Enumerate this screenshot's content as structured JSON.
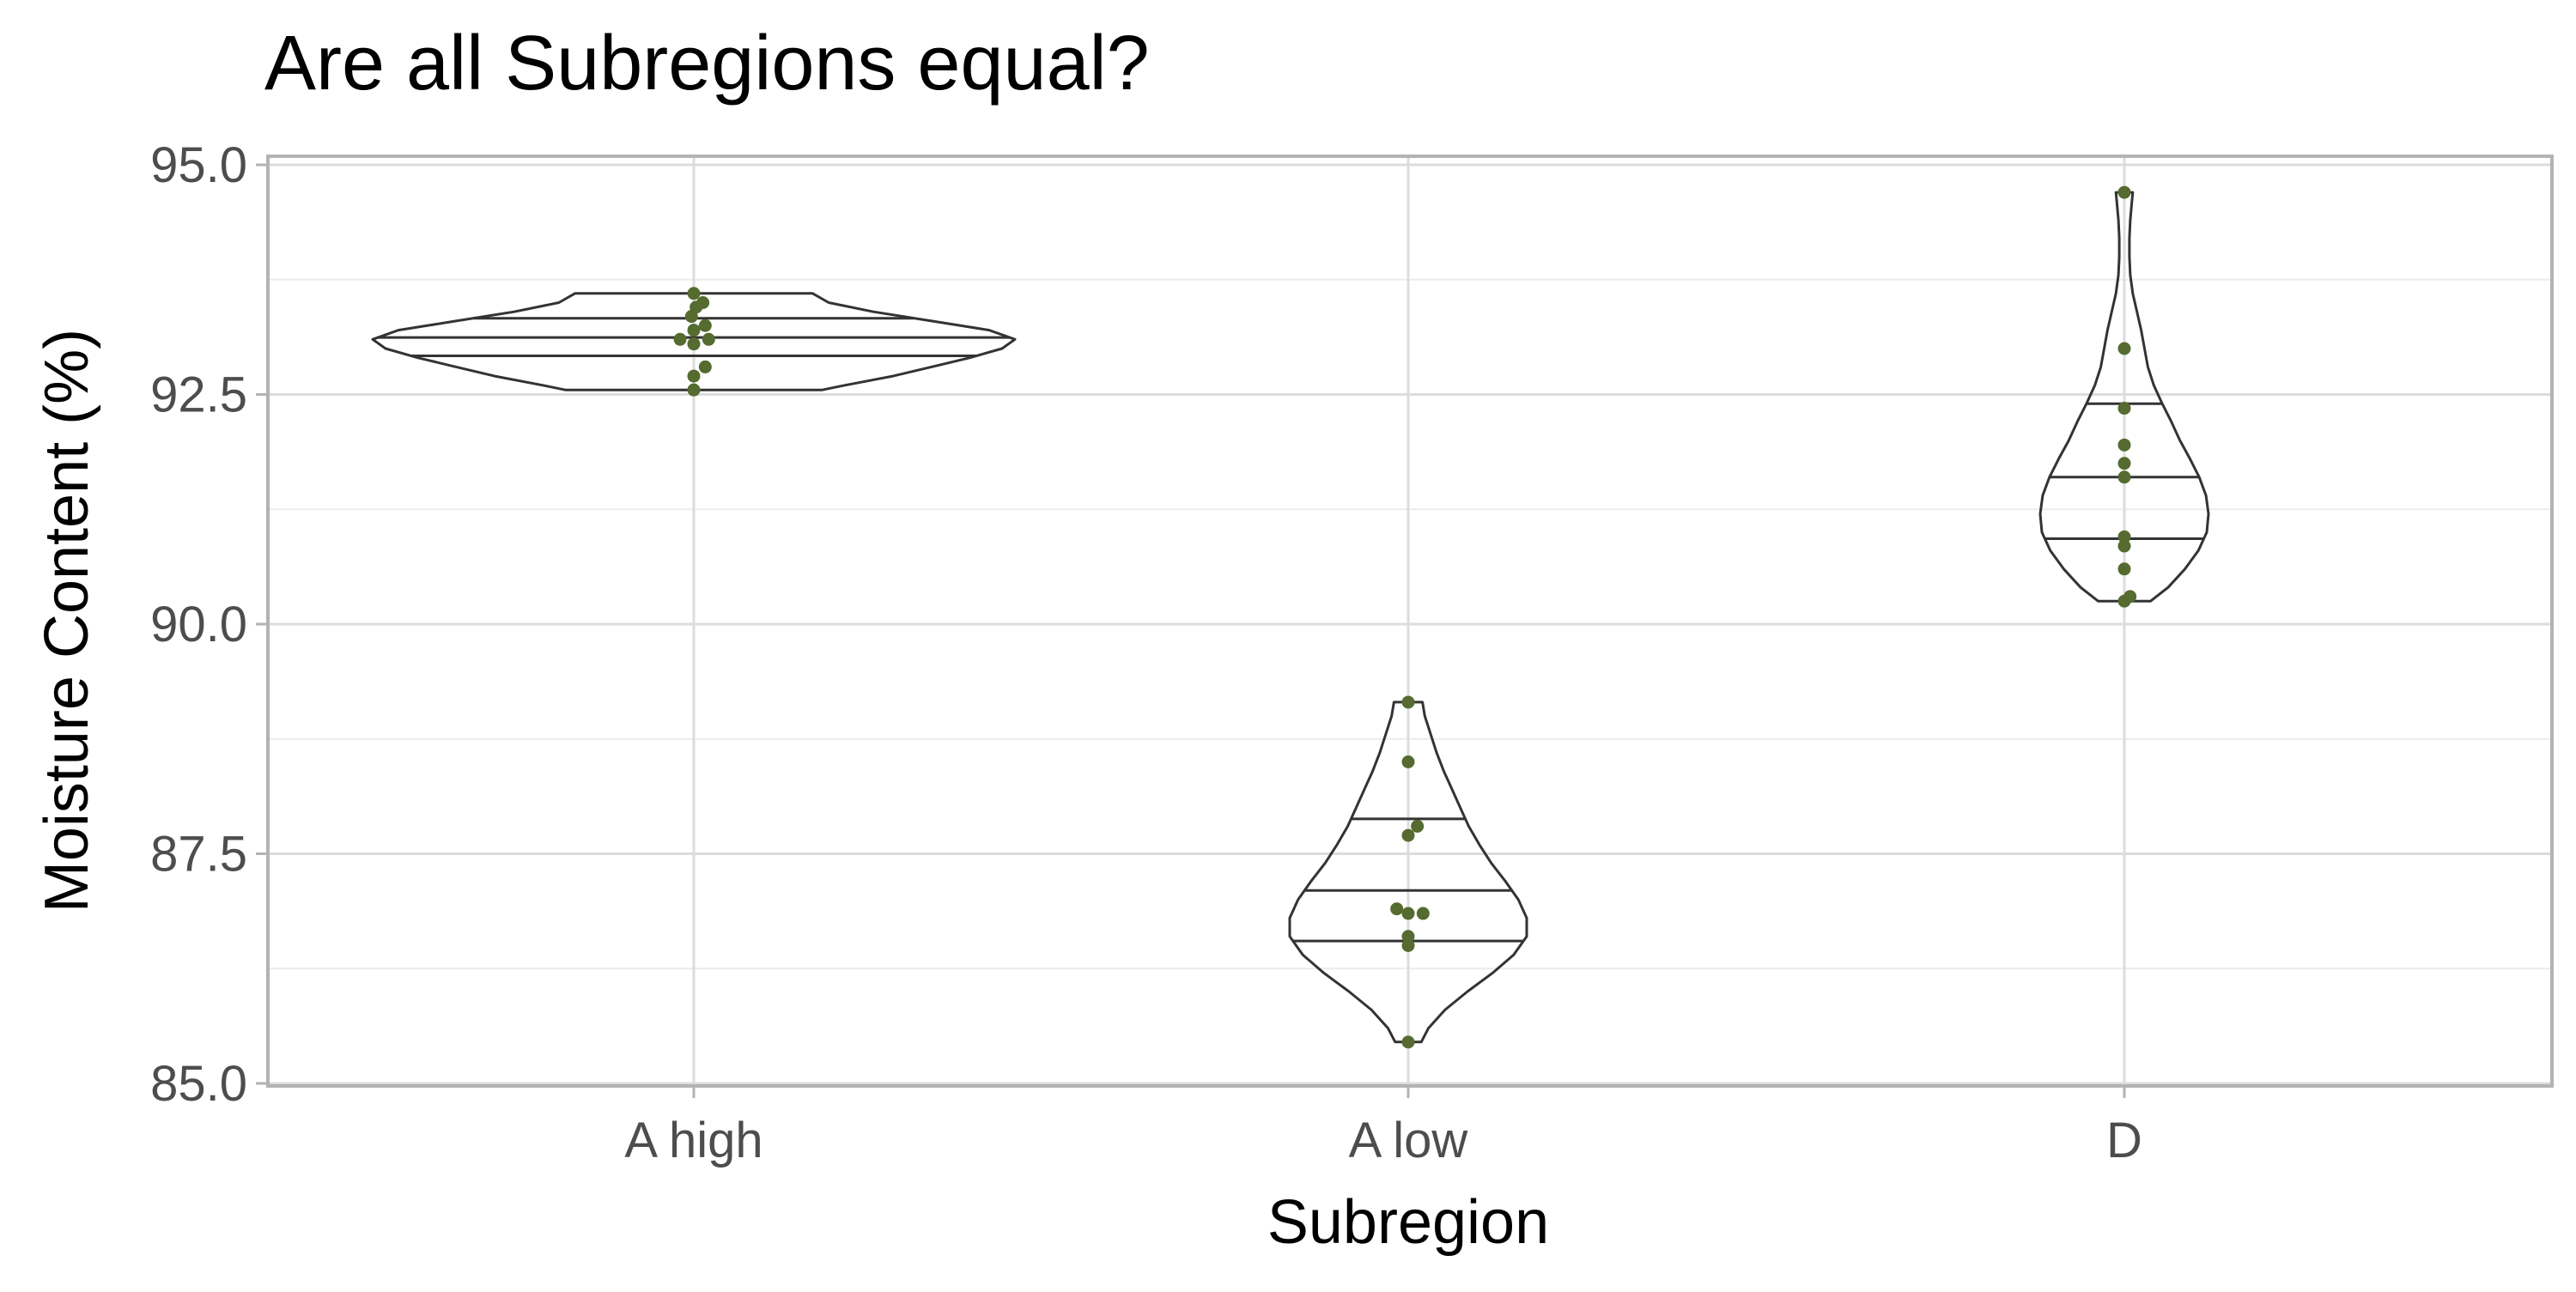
{
  "chart_data": {
    "type": "violin",
    "title": "Are all Subregions equal?",
    "xlabel": "Subregion",
    "ylabel": "Moisture Content (%)",
    "categories": [
      "A high",
      "A low",
      "D"
    ],
    "ylim": [
      85.0,
      95.0
    ],
    "yticks": [
      85.0,
      87.5,
      90.0,
      92.5,
      95.0
    ],
    "ytick_labels": [
      "85.0",
      "87.5",
      "90.0",
      "92.5",
      "95.0"
    ],
    "grid": true,
    "colors": {
      "points": "#556b2f",
      "violin_stroke": "#333333",
      "grid": "#dcdcdc",
      "panel_border": "#b3b3b3"
    },
    "groups": [
      {
        "category": "A high",
        "points": [
          {
            "y": 93.6,
            "dx": 0.0
          },
          {
            "y": 93.5,
            "dx": 0.08
          },
          {
            "y": 93.45,
            "dx": 0.02
          },
          {
            "y": 93.35,
            "dx": -0.02
          },
          {
            "y": 93.25,
            "dx": 0.1
          },
          {
            "y": 93.2,
            "dx": 0.0
          },
          {
            "y": 93.1,
            "dx": -0.12
          },
          {
            "y": 93.1,
            "dx": 0.13
          },
          {
            "y": 93.05,
            "dx": 0.0
          },
          {
            "y": 92.8,
            "dx": 0.1
          },
          {
            "y": 92.7,
            "dx": 0.0
          },
          {
            "y": 92.55,
            "dx": 0.0
          }
        ],
        "quantiles": [
          92.92,
          93.12,
          93.33
        ],
        "density": [
          [
            92.55,
            0.4
          ],
          [
            92.6,
            0.47
          ],
          [
            92.7,
            0.62
          ],
          [
            92.8,
            0.74
          ],
          [
            92.9,
            0.86
          ],
          [
            93.0,
            0.96
          ],
          [
            93.1,
            1.0
          ],
          [
            93.2,
            0.92
          ],
          [
            93.3,
            0.74
          ],
          [
            93.4,
            0.56
          ],
          [
            93.5,
            0.42
          ],
          [
            93.6,
            0.37
          ]
        ]
      },
      {
        "category": "A low",
        "points": [
          {
            "y": 89.15,
            "dx": 0.0
          },
          {
            "y": 88.5,
            "dx": 0.0
          },
          {
            "y": 87.8,
            "dx": 0.08
          },
          {
            "y": 87.7,
            "dx": 0.0
          },
          {
            "y": 86.9,
            "dx": -0.1
          },
          {
            "y": 86.85,
            "dx": 0.0
          },
          {
            "y": 86.85,
            "dx": 0.13
          },
          {
            "y": 86.6,
            "dx": 0.0
          },
          {
            "y": 86.5,
            "dx": 0.0
          },
          {
            "y": 85.45,
            "dx": 0.0
          }
        ],
        "quantiles": [
          86.55,
          87.1,
          87.88
        ],
        "density": [
          [
            85.45,
            0.11
          ],
          [
            85.6,
            0.17
          ],
          [
            85.8,
            0.31
          ],
          [
            86.0,
            0.5
          ],
          [
            86.2,
            0.71
          ],
          [
            86.4,
            0.89
          ],
          [
            86.6,
            1.0
          ],
          [
            86.8,
            1.0
          ],
          [
            87.0,
            0.93
          ],
          [
            87.2,
            0.82
          ],
          [
            87.4,
            0.7
          ],
          [
            87.6,
            0.6
          ],
          [
            87.8,
            0.51
          ],
          [
            88.0,
            0.44
          ],
          [
            88.2,
            0.37
          ],
          [
            88.4,
            0.3
          ],
          [
            88.6,
            0.24
          ],
          [
            88.8,
            0.19
          ],
          [
            89.0,
            0.14
          ],
          [
            89.15,
            0.12
          ]
        ]
      },
      {
        "category": "D",
        "points": [
          {
            "y": 94.7,
            "dx": 0.0
          },
          {
            "y": 93.0,
            "dx": 0.0
          },
          {
            "y": 92.35,
            "dx": 0.0
          },
          {
            "y": 91.95,
            "dx": 0.0
          },
          {
            "y": 91.75,
            "dx": 0.0
          },
          {
            "y": 91.6,
            "dx": 0.0
          },
          {
            "y": 90.95,
            "dx": 0.0
          },
          {
            "y": 90.85,
            "dx": 0.0
          },
          {
            "y": 90.6,
            "dx": 0.0
          },
          {
            "y": 90.3,
            "dx": 0.05
          },
          {
            "y": 90.25,
            "dx": 0.0
          }
        ],
        "quantiles": [
          90.93,
          91.6,
          92.4
        ],
        "density": [
          [
            90.25,
            0.31
          ],
          [
            90.4,
            0.52
          ],
          [
            90.6,
            0.72
          ],
          [
            90.8,
            0.88
          ],
          [
            91.0,
            0.98
          ],
          [
            91.2,
            1.0
          ],
          [
            91.4,
            0.97
          ],
          [
            91.6,
            0.89
          ],
          [
            91.8,
            0.78
          ],
          [
            92.0,
            0.66
          ],
          [
            92.2,
            0.56
          ],
          [
            92.4,
            0.45
          ],
          [
            92.6,
            0.35
          ],
          [
            92.8,
            0.28
          ],
          [
            93.0,
            0.24
          ],
          [
            93.2,
            0.2
          ],
          [
            93.4,
            0.15
          ],
          [
            93.6,
            0.1
          ],
          [
            93.8,
            0.07
          ],
          [
            94.0,
            0.06
          ],
          [
            94.2,
            0.06
          ],
          [
            94.4,
            0.07
          ],
          [
            94.6,
            0.09
          ],
          [
            94.7,
            0.1
          ]
        ]
      }
    ]
  }
}
